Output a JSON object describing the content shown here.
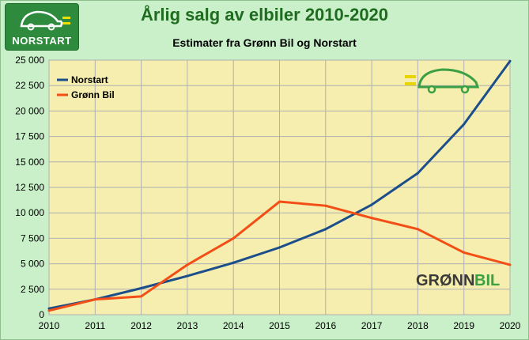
{
  "title": "Årlig salg av elbiler 2010-2020",
  "subtitle": "Estimater fra Grønn Bil og Norstart",
  "logos": {
    "norstart": "NORSTART",
    "gronnbil_dark": "GRØNN",
    "gronnbil_light": "BIL"
  },
  "colors": {
    "background": "#c9f0c9",
    "plot_area": "#f5eeae",
    "norstart": "#1c4e8c",
    "gronn_bil": "#f24e16",
    "title": "#1f6b1f"
  },
  "chart_data": {
    "type": "line",
    "x": [
      2010,
      2011,
      2012,
      2013,
      2014,
      2015,
      2016,
      2017,
      2018,
      2019,
      2020
    ],
    "y_tick_labels": [
      "0",
      "2 500",
      "5 000",
      "7 500",
      "10 000",
      "12 500",
      "15 000",
      "17 500",
      "20 000",
      "22 500",
      "25 000"
    ],
    "ylim": [
      0,
      25000
    ],
    "xlim": [
      2010,
      2020
    ],
    "grid": true,
    "legend_position": "top-left",
    "series": [
      {
        "name": "Norstart",
        "color": "#1c4e8c",
        "values": [
          600,
          1500,
          2600,
          3800,
          5100,
          6600,
          8400,
          10800,
          13900,
          18700,
          24900
        ]
      },
      {
        "name": "Grønn Bil",
        "color": "#f24e16",
        "values": [
          400,
          1500,
          1800,
          4900,
          7500,
          11100,
          10700,
          9500,
          8400,
          6100,
          4900
        ]
      }
    ]
  }
}
